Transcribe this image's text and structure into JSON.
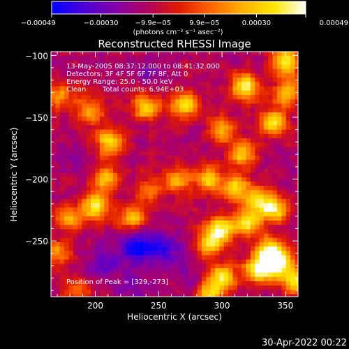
{
  "chart_data": {
    "type": "heatmap",
    "title": "Reconstructed RHESSI Image",
    "xlabel": "Heliocentric X (arcsec)",
    "ylabel": "Heliocentric Y (arcsec)",
    "xlim": [
      165,
      360
    ],
    "ylim": [
      -295,
      -97
    ],
    "xticks": [
      200,
      250,
      300,
      350
    ],
    "xtick_labels": [
      "200",
      "250",
      "300",
      "350"
    ],
    "yticks": [
      -100,
      -150,
      -200,
      -250
    ],
    "ytick_labels": [
      "−100",
      "−150",
      "−200",
      "−250"
    ],
    "colorbar": {
      "min": -0.00049,
      "max": 0.00049,
      "ticks": [
        -0.00049,
        -0.0003,
        -9.9e-05,
        9.9e-05,
        0.0003,
        0.00049
      ],
      "tick_labels": [
        "−0.00049",
        "−0.00030",
        "−9.9e−05",
        "9.9e−05",
        "0.00030",
        "0.00049"
      ],
      "unit_label": "(photons cm⁻² s⁻¹ asec⁻²)",
      "stops": [
        "#0000ff",
        "#4a00d8",
        "#8200a8",
        "#b10060",
        "#e01a00",
        "#ff6400",
        "#ffb000",
        "#ffe600",
        "#ffffff"
      ]
    },
    "annotations": {
      "time_range": "13-May-2005 08:37:12.000 to 08:41:32.000",
      "detectors": "Detectors: 3F 4F 5F 6F 7F 8F, Att 0",
      "energy": "Energy Range: 25.0 - 50.0 keV",
      "clean_label": "Clean",
      "total_counts": "Total counts: 6.94E+03",
      "peak": "Position of Peak = [329,-273]"
    },
    "hot_regions": [
      {
        "x": 350,
        "y": -105,
        "value": 0.0004
      },
      {
        "x": 352,
        "y": -130,
        "value": 0.00033
      },
      {
        "x": 341,
        "y": -155,
        "value": 0.00036
      },
      {
        "x": 318,
        "y": -125,
        "value": 0.00045
      },
      {
        "x": 316,
        "y": -180,
        "value": 0.0003
      },
      {
        "x": 300,
        "y": -160,
        "value": 0.00025
      },
      {
        "x": 270,
        "y": -140,
        "value": 0.00035
      },
      {
        "x": 240,
        "y": -142,
        "value": 0.0003
      },
      {
        "x": 172,
        "y": -133,
        "value": 0.00022
      },
      {
        "x": 196,
        "y": -145,
        "value": 0.00025
      },
      {
        "x": 211,
        "y": -170,
        "value": 0.00035
      },
      {
        "x": 208,
        "y": -200,
        "value": 0.0003
      },
      {
        "x": 243,
        "y": -210,
        "value": 0.00018
      },
      {
        "x": 265,
        "y": -200,
        "value": 0.00025
      },
      {
        "x": 290,
        "y": -200,
        "value": 0.00032
      },
      {
        "x": 312,
        "y": -207,
        "value": 0.00032
      },
      {
        "x": 330,
        "y": -218,
        "value": 0.00036
      },
      {
        "x": 343,
        "y": -225,
        "value": 0.00034
      },
      {
        "x": 200,
        "y": -222,
        "value": 0.00042
      },
      {
        "x": 180,
        "y": -232,
        "value": 0.00022
      },
      {
        "x": 230,
        "y": -232,
        "value": 0.00025
      },
      {
        "x": 320,
        "y": -235,
        "value": 0.00038
      },
      {
        "x": 300,
        "y": -240,
        "value": 0.0004
      },
      {
        "x": 290,
        "y": -252,
        "value": 0.0004
      },
      {
        "x": 338,
        "y": -258,
        "value": 0.00042
      },
      {
        "x": 329,
        "y": -273,
        "value": 0.00049
      },
      {
        "x": 345,
        "y": -268,
        "value": 0.00045
      },
      {
        "x": 358,
        "y": -282,
        "value": 0.0004
      },
      {
        "x": 300,
        "y": -280,
        "value": 0.00038
      },
      {
        "x": 290,
        "y": -293,
        "value": 0.0003
      },
      {
        "x": 170,
        "y": -260,
        "value": 0.0002
      },
      {
        "x": 185,
        "y": -290,
        "value": 0.00018
      }
    ],
    "cold_regions": [
      {
        "x": 232,
        "y": -255,
        "value": -0.00045
      },
      {
        "x": 250,
        "y": -255,
        "value": -0.0004
      },
      {
        "x": 240,
        "y": -112,
        "value": -0.00022
      },
      {
        "x": 210,
        "y": -268,
        "value": -0.0003
      },
      {
        "x": 230,
        "y": -288,
        "value": -0.00025
      },
      {
        "x": 275,
        "y": -285,
        "value": -0.0002
      },
      {
        "x": 270,
        "y": -262,
        "value": -0.00022
      },
      {
        "x": 185,
        "y": -185,
        "value": -0.00018
      }
    ]
  },
  "footer": {
    "timestamp": "30-Apr-2022 00:22"
  }
}
